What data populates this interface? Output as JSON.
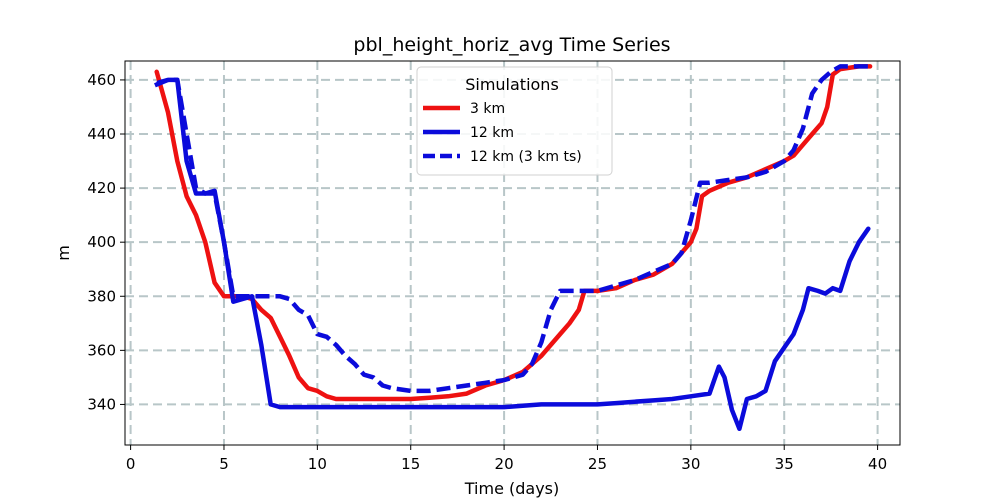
{
  "chart_data": {
    "type": "line",
    "title": "pbl_height_horiz_avg Time Series",
    "xlabel": "Time (days)",
    "ylabel": "m",
    "xlim": [
      -0.3,
      41.2
    ],
    "ylim": [
      325,
      467
    ],
    "xticks": [
      0,
      5,
      10,
      15,
      20,
      25,
      30,
      35,
      40
    ],
    "yticks": [
      340,
      360,
      380,
      400,
      420,
      440,
      460
    ],
    "grid": true,
    "legend": {
      "title": "Simulations",
      "position": "upper center"
    },
    "series": [
      {
        "name": "3 km",
        "color": "#ee1111",
        "style": "solid",
        "points": [
          [
            1.4,
            463
          ],
          [
            2.0,
            448
          ],
          [
            2.5,
            430
          ],
          [
            3.0,
            417
          ],
          [
            3.5,
            410
          ],
          [
            4.0,
            400
          ],
          [
            4.5,
            385
          ],
          [
            5.0,
            380
          ],
          [
            5.5,
            380
          ],
          [
            6.0,
            380
          ],
          [
            6.5,
            379
          ],
          [
            7.0,
            375
          ],
          [
            7.5,
            372
          ],
          [
            8.0,
            365
          ],
          [
            8.5,
            358
          ],
          [
            9.0,
            350
          ],
          [
            9.5,
            346
          ],
          [
            10.0,
            345
          ],
          [
            10.5,
            343
          ],
          [
            11.0,
            342
          ],
          [
            12.0,
            342
          ],
          [
            13.0,
            342
          ],
          [
            14.0,
            342
          ],
          [
            15.0,
            342
          ],
          [
            16.0,
            342.5
          ],
          [
            17.0,
            343
          ],
          [
            18.0,
            344
          ],
          [
            19.0,
            347
          ],
          [
            20.0,
            349
          ],
          [
            21.0,
            352
          ],
          [
            21.5,
            355
          ],
          [
            22.0,
            358
          ],
          [
            22.5,
            362
          ],
          [
            23.0,
            366
          ],
          [
            23.5,
            370
          ],
          [
            24.0,
            375
          ],
          [
            24.3,
            382
          ],
          [
            25.0,
            382
          ],
          [
            26.0,
            383
          ],
          [
            27.0,
            386
          ],
          [
            28.0,
            388
          ],
          [
            29.0,
            392
          ],
          [
            29.5,
            396
          ],
          [
            30.0,
            400
          ],
          [
            30.3,
            405
          ],
          [
            30.6,
            417
          ],
          [
            31.0,
            419
          ],
          [
            32.0,
            422
          ],
          [
            33.0,
            424
          ],
          [
            34.0,
            427
          ],
          [
            35.0,
            430
          ],
          [
            35.5,
            432
          ],
          [
            36.0,
            436
          ],
          [
            36.5,
            440
          ],
          [
            37.0,
            444
          ],
          [
            37.3,
            450
          ],
          [
            37.6,
            462
          ],
          [
            38.0,
            464
          ],
          [
            39.0,
            465
          ],
          [
            39.6,
            465
          ]
        ]
      },
      {
        "name": "12 km",
        "color": "#0b0bdb",
        "style": "solid",
        "points": [
          [
            1.5,
            459
          ],
          [
            2.0,
            460
          ],
          [
            2.5,
            460
          ],
          [
            3.0,
            430
          ],
          [
            3.5,
            418
          ],
          [
            4.0,
            418
          ],
          [
            4.5,
            419
          ],
          [
            5.0,
            400
          ],
          [
            5.5,
            378
          ],
          [
            6.0,
            379
          ],
          [
            6.5,
            380
          ],
          [
            7.0,
            362
          ],
          [
            7.5,
            340
          ],
          [
            8.0,
            339
          ],
          [
            9.0,
            339
          ],
          [
            10.0,
            339
          ],
          [
            11.0,
            339
          ],
          [
            12.0,
            339
          ],
          [
            13.0,
            339
          ],
          [
            14.0,
            339
          ],
          [
            15.0,
            339
          ],
          [
            16.0,
            339
          ],
          [
            17.0,
            339
          ],
          [
            18.0,
            339
          ],
          [
            19.0,
            339
          ],
          [
            20.0,
            339
          ],
          [
            21.0,
            339.5
          ],
          [
            22.0,
            340
          ],
          [
            23.0,
            340
          ],
          [
            24.0,
            340
          ],
          [
            25.0,
            340
          ],
          [
            26.0,
            340.5
          ],
          [
            27.0,
            341
          ],
          [
            28.0,
            341.5
          ],
          [
            29.0,
            342
          ],
          [
            30.0,
            343
          ],
          [
            31.0,
            344
          ],
          [
            31.5,
            354
          ],
          [
            31.8,
            350
          ],
          [
            32.2,
            338
          ],
          [
            32.6,
            331
          ],
          [
            33.0,
            342
          ],
          [
            33.5,
            343
          ],
          [
            34.0,
            345
          ],
          [
            34.5,
            356
          ],
          [
            35.0,
            361
          ],
          [
            35.5,
            366
          ],
          [
            36.0,
            375
          ],
          [
            36.3,
            383
          ],
          [
            36.8,
            382
          ],
          [
            37.2,
            381
          ],
          [
            37.6,
            383
          ],
          [
            38.0,
            382
          ],
          [
            38.5,
            393
          ],
          [
            39.0,
            400
          ],
          [
            39.5,
            405
          ]
        ]
      },
      {
        "name": "12 km (3 km ts)",
        "color": "#0b0bdb",
        "style": "dashed",
        "points": [
          [
            1.3,
            458
          ],
          [
            2.0,
            460
          ],
          [
            2.5,
            460
          ],
          [
            3.0,
            440
          ],
          [
            3.5,
            420
          ],
          [
            4.0,
            418
          ],
          [
            4.5,
            418
          ],
          [
            5.0,
            400
          ],
          [
            5.5,
            380
          ],
          [
            6.0,
            380
          ],
          [
            6.5,
            380
          ],
          [
            7.0,
            380
          ],
          [
            7.5,
            380
          ],
          [
            8.0,
            380
          ],
          [
            8.5,
            379
          ],
          [
            9.0,
            375
          ],
          [
            9.5,
            373
          ],
          [
            10.0,
            366
          ],
          [
            10.5,
            365
          ],
          [
            11.0,
            362
          ],
          [
            11.5,
            358
          ],
          [
            12.0,
            355
          ],
          [
            12.5,
            351
          ],
          [
            13.0,
            350
          ],
          [
            13.5,
            347
          ],
          [
            14.0,
            346
          ],
          [
            15.0,
            345
          ],
          [
            16.0,
            345
          ],
          [
            17.0,
            346
          ],
          [
            18.0,
            347
          ],
          [
            19.0,
            348
          ],
          [
            20.0,
            349
          ],
          [
            21.0,
            351
          ],
          [
            21.5,
            355
          ],
          [
            22.0,
            363
          ],
          [
            22.5,
            375
          ],
          [
            23.0,
            382
          ],
          [
            24.0,
            382
          ],
          [
            25.0,
            382
          ],
          [
            26.0,
            384
          ],
          [
            27.0,
            386
          ],
          [
            28.0,
            389
          ],
          [
            29.0,
            392
          ],
          [
            29.5,
            396
          ],
          [
            30.0,
            408
          ],
          [
            30.5,
            422
          ],
          [
            31.0,
            422
          ],
          [
            32.0,
            423
          ],
          [
            33.0,
            424
          ],
          [
            34.0,
            426
          ],
          [
            35.0,
            430
          ],
          [
            35.5,
            434
          ],
          [
            36.0,
            442
          ],
          [
            36.5,
            455
          ],
          [
            37.0,
            460
          ],
          [
            37.5,
            463
          ],
          [
            38.0,
            465
          ],
          [
            39.0,
            465
          ],
          [
            39.5,
            465
          ]
        ]
      }
    ]
  }
}
